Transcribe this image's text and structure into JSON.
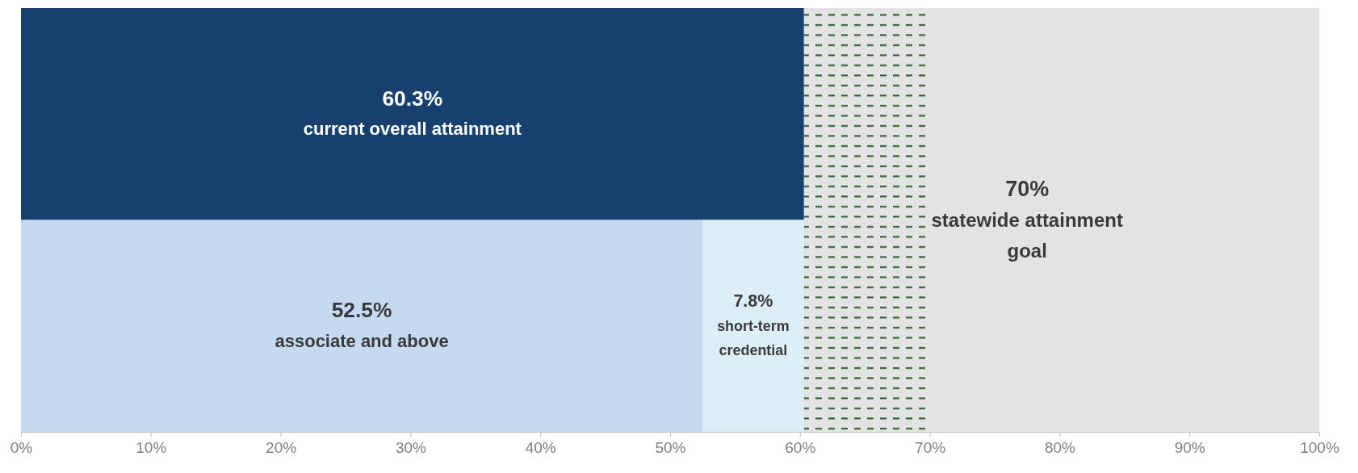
{
  "chart_data": {
    "type": "bar",
    "orientation": "horizontal",
    "stacked": true,
    "categories": [
      null,
      null
    ],
    "series": [
      {
        "name": "current overall attainment",
        "color": "#17406f",
        "values": [
          60.3,
          null
        ],
        "value_labels": [
          "60.3%",
          null
        ]
      },
      {
        "name": "associate and above",
        "color": "#c5d9f1",
        "values": [
          null,
          52.5
        ],
        "value_labels": [
          null,
          "52.5%"
        ]
      },
      {
        "name": "short-term credential",
        "color": "#ddeef6",
        "values": [
          null,
          7.8
        ],
        "value_labels": [
          null,
          "7.8%"
        ]
      }
    ],
    "bands": [
      {
        "axis": "x",
        "from": 60.3,
        "to": 70,
        "label": "70%\nstatewide attainment goal",
        "color": "#1f5a1f"
      }
    ],
    "xlim": [
      0,
      100
    ],
    "xticks": [
      {
        "value": 0,
        "label": "0%"
      },
      {
        "value": 10,
        "label": "10%"
      },
      {
        "value": 20,
        "label": "20%"
      },
      {
        "value": 30,
        "label": "30%"
      },
      {
        "value": 40,
        "label": "40%"
      },
      {
        "value": 50,
        "label": "50%"
      },
      {
        "value": 60,
        "label": "60%"
      },
      {
        "value": 70,
        "label": "70%"
      },
      {
        "value": 80,
        "label": "80%"
      },
      {
        "value": 90,
        "label": "90%"
      },
      {
        "value": 100,
        "label": "100%"
      }
    ],
    "tick_labels": "x",
    "legend": false,
    "grid": false
  }
}
